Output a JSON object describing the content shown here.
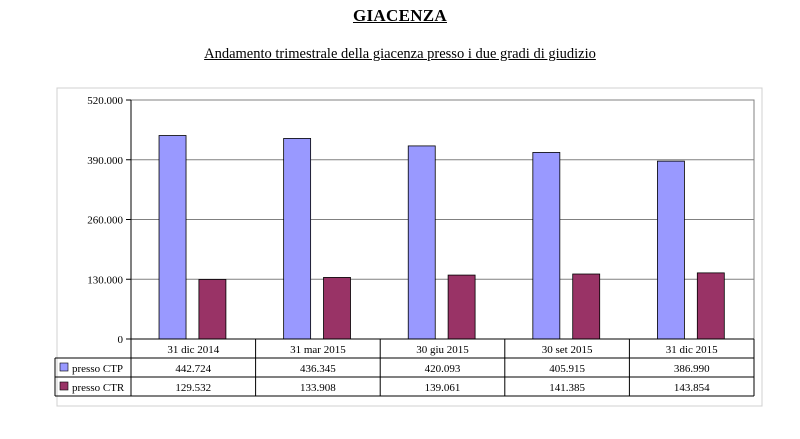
{
  "header": {
    "title": "GIACENZA",
    "subtitle": "Andamento trimestrale della giacenza presso i due gradi di giudizio"
  },
  "colors": {
    "ctp": "#9999ff",
    "ctr": "#993366",
    "grid": "#808080",
    "border": "#000000"
  },
  "chart_data": {
    "type": "bar",
    "categories": [
      "31 dic 2014",
      "31 mar 2015",
      "30 giu 2015",
      "30 set 2015",
      "31 dic 2015"
    ],
    "series": [
      {
        "name": "presso CTP",
        "color": "#9999ff",
        "values": [
          442724,
          436345,
          420093,
          405915,
          386990
        ],
        "labels": [
          "442.724",
          "436.345",
          "420.093",
          "405.915",
          "386.990"
        ]
      },
      {
        "name": "presso CTR",
        "color": "#993366",
        "values": [
          129532,
          133908,
          139061,
          141385,
          143854
        ],
        "labels": [
          "129.532",
          "133.908",
          "139.061",
          "141.385",
          "143.854"
        ]
      }
    ],
    "ylim": [
      0,
      520000
    ],
    "yticks": [
      0,
      130000,
      260000,
      390000,
      520000
    ],
    "ytick_labels": [
      "0",
      "130.000",
      "260.000",
      "390.000",
      "520.000"
    ],
    "grid": true,
    "legend": "data-table"
  }
}
